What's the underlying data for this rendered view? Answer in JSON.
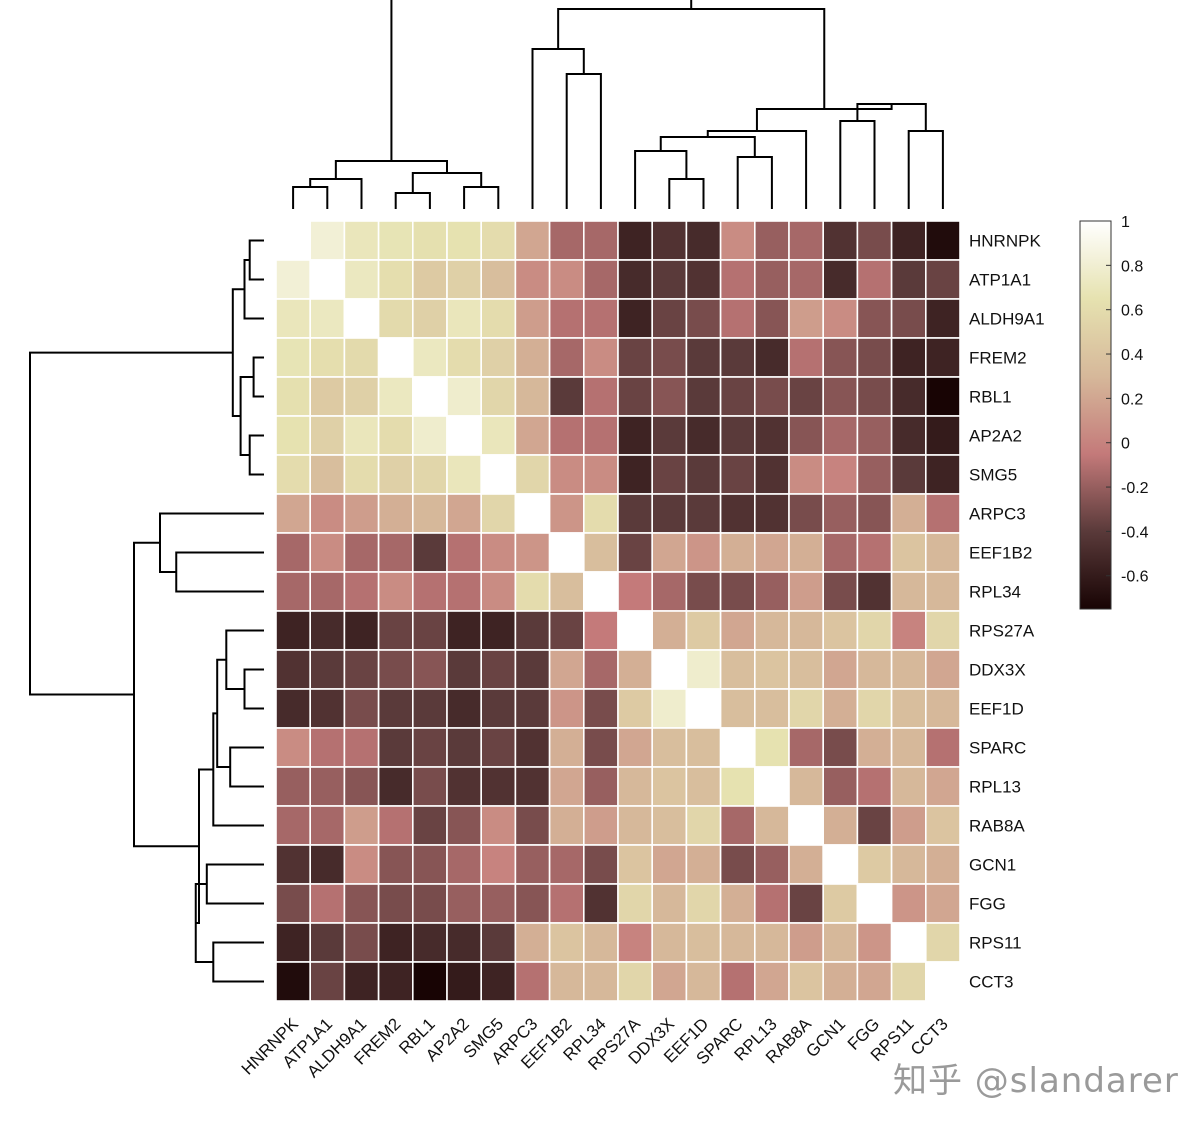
{
  "chart_data": {
    "type": "heatmap",
    "title": "",
    "xlabel": "",
    "ylabel": "",
    "labels": [
      "HNRNPK",
      "ATP1A1",
      "ALDH9A1",
      "FREM2",
      "RBL1",
      "AP2A2",
      "SMG5",
      "ARPC3",
      "EEF1B2",
      "RPL34",
      "RPS27A",
      "DDX3X",
      "EEF1D",
      "SPARC",
      "RPL13",
      "RAB8A",
      "GCN1",
      "FGG",
      "RPS11",
      "CCT3"
    ],
    "values": [
      [
        1.0,
        0.82,
        0.7,
        0.67,
        0.63,
        0.65,
        0.6,
        0.2,
        -0.15,
        -0.15,
        -0.55,
        -0.45,
        -0.5,
        0.05,
        -0.2,
        -0.15,
        -0.45,
        -0.3,
        -0.55,
        -0.7
      ],
      [
        0.82,
        1.0,
        0.72,
        0.62,
        0.45,
        0.5,
        0.35,
        0.05,
        0.05,
        -0.15,
        -0.5,
        -0.4,
        -0.45,
        -0.1,
        -0.2,
        -0.15,
        -0.5,
        -0.1,
        -0.4,
        -0.35
      ],
      [
        0.7,
        0.72,
        1.0,
        0.58,
        0.5,
        0.7,
        0.6,
        0.15,
        -0.1,
        -0.1,
        -0.55,
        -0.35,
        -0.3,
        -0.1,
        -0.25,
        0.15,
        0.05,
        -0.25,
        -0.3,
        -0.55
      ],
      [
        0.67,
        0.62,
        0.58,
        1.0,
        0.72,
        0.6,
        0.5,
        0.25,
        -0.15,
        0.05,
        -0.35,
        -0.3,
        -0.4,
        -0.4,
        -0.5,
        -0.1,
        -0.25,
        -0.3,
        -0.55,
        -0.55
      ],
      [
        0.63,
        0.45,
        0.5,
        0.72,
        1.0,
        0.78,
        0.55,
        0.3,
        -0.4,
        -0.1,
        -0.35,
        -0.25,
        -0.4,
        -0.35,
        -0.3,
        -0.35,
        -0.25,
        -0.3,
        -0.5,
        -0.75
      ],
      [
        0.65,
        0.5,
        0.7,
        0.6,
        0.78,
        1.0,
        0.7,
        0.2,
        -0.1,
        -0.1,
        -0.55,
        -0.4,
        -0.5,
        -0.4,
        -0.45,
        -0.25,
        -0.15,
        -0.2,
        -0.5,
        -0.6
      ],
      [
        0.6,
        0.35,
        0.6,
        0.5,
        0.55,
        0.7,
        1.0,
        0.55,
        0.05,
        0.05,
        -0.55,
        -0.35,
        -0.4,
        -0.35,
        -0.45,
        0.05,
        0.0,
        -0.2,
        -0.4,
        -0.55
      ],
      [
        0.2,
        0.05,
        0.15,
        0.25,
        0.3,
        0.2,
        0.55,
        1.0,
        0.1,
        0.6,
        -0.4,
        -0.4,
        -0.4,
        -0.45,
        -0.45,
        -0.3,
        -0.2,
        -0.25,
        0.25,
        -0.1
      ],
      [
        -0.15,
        0.05,
        -0.15,
        -0.15,
        -0.4,
        -0.1,
        0.05,
        0.1,
        1.0,
        0.35,
        -0.35,
        0.2,
        0.1,
        0.25,
        0.2,
        0.25,
        -0.15,
        -0.1,
        0.4,
        0.3
      ],
      [
        -0.15,
        -0.15,
        -0.1,
        0.05,
        -0.1,
        -0.1,
        0.05,
        0.6,
        0.35,
        1.0,
        -0.05,
        -0.15,
        -0.3,
        -0.3,
        -0.2,
        0.15,
        -0.3,
        -0.45,
        0.3,
        0.3
      ],
      [
        -0.55,
        -0.5,
        -0.55,
        -0.35,
        -0.35,
        -0.55,
        -0.55,
        -0.4,
        -0.35,
        -0.05,
        1.0,
        0.25,
        0.45,
        0.2,
        0.3,
        0.3,
        0.4,
        0.55,
        0.0,
        0.55
      ],
      [
        -0.45,
        -0.4,
        -0.35,
        -0.3,
        -0.25,
        -0.4,
        -0.35,
        -0.4,
        0.2,
        -0.15,
        0.25,
        1.0,
        0.78,
        0.35,
        0.4,
        0.35,
        0.2,
        0.3,
        0.3,
        0.2
      ],
      [
        -0.5,
        -0.45,
        -0.3,
        -0.4,
        -0.4,
        -0.5,
        -0.4,
        -0.4,
        0.1,
        -0.3,
        0.45,
        0.78,
        1.0,
        0.35,
        0.35,
        0.55,
        0.25,
        0.55,
        0.35,
        0.3
      ],
      [
        0.05,
        -0.1,
        -0.1,
        -0.4,
        -0.35,
        -0.4,
        -0.35,
        -0.45,
        0.25,
        -0.3,
        0.2,
        0.35,
        0.35,
        1.0,
        0.65,
        -0.15,
        -0.3,
        0.25,
        0.3,
        -0.1
      ],
      [
        -0.2,
        -0.2,
        -0.25,
        -0.5,
        -0.3,
        -0.45,
        -0.45,
        -0.45,
        0.2,
        -0.2,
        0.3,
        0.4,
        0.35,
        0.65,
        1.0,
        0.3,
        -0.2,
        -0.1,
        0.3,
        0.2
      ],
      [
        -0.15,
        -0.15,
        0.15,
        -0.1,
        -0.35,
        -0.25,
        0.05,
        -0.3,
        0.25,
        0.15,
        0.3,
        0.35,
        0.55,
        -0.15,
        0.3,
        1.0,
        0.25,
        -0.35,
        0.15,
        0.4
      ],
      [
        -0.45,
        -0.5,
        0.05,
        -0.25,
        -0.25,
        -0.15,
        0.0,
        -0.2,
        -0.15,
        -0.3,
        0.4,
        0.2,
        0.25,
        -0.3,
        -0.2,
        0.25,
        1.0,
        0.45,
        0.3,
        0.25
      ],
      [
        -0.3,
        -0.1,
        -0.25,
        -0.3,
        -0.3,
        -0.2,
        -0.2,
        -0.25,
        -0.1,
        -0.45,
        0.55,
        0.3,
        0.55,
        0.25,
        -0.1,
        -0.35,
        0.45,
        1.0,
        0.1,
        0.2
      ],
      [
        -0.55,
        -0.4,
        -0.3,
        -0.55,
        -0.5,
        -0.5,
        -0.4,
        0.25,
        0.4,
        0.3,
        0.0,
        0.3,
        0.35,
        0.3,
        0.3,
        0.15,
        0.3,
        0.1,
        1.0,
        0.55
      ],
      [
        -0.7,
        -0.35,
        -0.55,
        -0.55,
        -0.75,
        -0.6,
        -0.55,
        -0.1,
        0.3,
        0.3,
        0.55,
        0.2,
        0.3,
        -0.1,
        0.2,
        0.4,
        0.25,
        0.2,
        0.55,
        1.0
      ]
    ],
    "colorbar": {
      "min": -0.75,
      "max": 1,
      "ticks": [
        1,
        0.8,
        0.6,
        0.4,
        0.2,
        0,
        -0.2,
        -0.4,
        -0.6
      ],
      "tick_labels": [
        "1",
        "0.8",
        "0.6",
        "0.4",
        "0.2",
        "0",
        "-0.2",
        "-0.4",
        "-0.6"
      ]
    },
    "colormap": [
      "#180404",
      "#5a3a3a",
      "#c47a7a",
      "#d6b89a",
      "#e6e2b0",
      "#ffffff"
    ],
    "grid_color": "#ffffff",
    "dendrograms": "top and left"
  },
  "watermark": "知乎 @slandarer"
}
